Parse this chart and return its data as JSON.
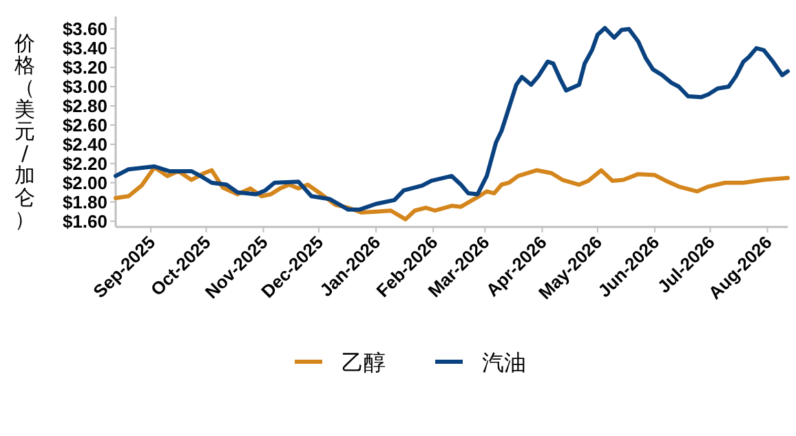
{
  "chart_data": {
    "type": "line",
    "ylabel": "价格（美元/加仑）",
    "legend": "bottom",
    "grid": false,
    "xlim": [
      "2025-08-13",
      "2026-08-12"
    ],
    "ylim": [
      1.54,
      3.73
    ],
    "xticks": [
      {
        "value": "2025-09-01",
        "label": "Sep-2025"
      },
      {
        "value": "2025-10-01",
        "label": "Oct-2025"
      },
      {
        "value": "2025-11-01",
        "label": "Nov-2025"
      },
      {
        "value": "2025-12-01",
        "label": "Dec-2025"
      },
      {
        "value": "2026-01-01",
        "label": "Jan-2026"
      },
      {
        "value": "2026-02-01",
        "label": "Feb-2026"
      },
      {
        "value": "2026-03-01",
        "label": "Mar-2026"
      },
      {
        "value": "2026-04-01",
        "label": "Apr-2026"
      },
      {
        "value": "2026-05-01",
        "label": "May-2026"
      },
      {
        "value": "2026-06-01",
        "label": "Jun-2026"
      },
      {
        "value": "2026-07-01",
        "label": "Jul-2026"
      },
      {
        "value": "2026-08-01",
        "label": "Aug-2026"
      }
    ],
    "yticks": [
      {
        "value": 1.6,
        "label": "$1.60"
      },
      {
        "value": 1.8,
        "label": "$1.80"
      },
      {
        "value": 2.0,
        "label": "$2.00"
      },
      {
        "value": 2.2,
        "label": "$2.20"
      },
      {
        "value": 2.4,
        "label": "$2.40"
      },
      {
        "value": 2.6,
        "label": "$2.60"
      },
      {
        "value": 2.8,
        "label": "$2.80"
      },
      {
        "value": 3.0,
        "label": "$3.00"
      },
      {
        "value": 3.2,
        "label": "$3.20"
      },
      {
        "value": 3.4,
        "label": "$3.40"
      },
      {
        "value": 3.6,
        "label": "$3.60"
      }
    ],
    "series": [
      {
        "name": "乙醇",
        "color": "#d4861c",
        "x": [
          "2025-08-13",
          "2025-08-20",
          "2025-08-27",
          "2025-09-03",
          "2025-09-10",
          "2025-09-16",
          "2025-09-23",
          "2025-09-30",
          "2025-10-04",
          "2025-10-10",
          "2025-10-18",
          "2025-10-25",
          "2025-10-31",
          "2025-11-05",
          "2025-11-10",
          "2025-11-15",
          "2025-11-20",
          "2025-11-25",
          "2025-12-01",
          "2025-12-10",
          "2025-12-17",
          "2025-12-24",
          "2026-01-01",
          "2026-01-09",
          "2026-01-17",
          "2026-01-22",
          "2026-01-28",
          "2026-02-02",
          "2026-02-11",
          "2026-02-16",
          "2026-02-25",
          "2026-03-02",
          "2026-03-06",
          "2026-03-10",
          "2026-03-14",
          "2026-03-19",
          "2026-03-29",
          "2026-04-06",
          "2026-04-12",
          "2026-04-21",
          "2026-04-26",
          "2026-05-03",
          "2026-05-09",
          "2026-05-15",
          "2026-05-23",
          "2026-06-01",
          "2026-06-07",
          "2026-06-14",
          "2026-06-24",
          "2026-06-30",
          "2026-07-09",
          "2026-07-19",
          "2026-07-30",
          "2026-08-12"
        ],
        "values": [
          1.84,
          1.86,
          1.97,
          2.16,
          2.07,
          2.12,
          2.03,
          2.1,
          2.13,
          1.95,
          1.88,
          1.94,
          1.86,
          1.88,
          1.94,
          1.98,
          1.94,
          1.98,
          1.9,
          1.77,
          1.74,
          1.69,
          1.7,
          1.71,
          1.62,
          1.71,
          1.74,
          1.71,
          1.76,
          1.75,
          1.85,
          1.91,
          1.89,
          1.98,
          2.0,
          2.07,
          2.13,
          2.1,
          2.03,
          1.98,
          2.02,
          2.13,
          2.02,
          2.03,
          2.09,
          2.08,
          2.02,
          1.96,
          1.91,
          1.96,
          2.0,
          2.0,
          2.03,
          2.05
        ]
      },
      {
        "name": "汽油",
        "color": "#0a4280",
        "x": [
          "2025-08-13",
          "2025-08-20",
          "2025-09-03",
          "2025-09-11",
          "2025-09-16",
          "2025-09-23",
          "2025-09-28",
          "2025-10-04",
          "2025-10-12",
          "2025-10-18",
          "2025-10-28",
          "2025-11-02",
          "2025-11-07",
          "2025-11-20",
          "2025-11-27",
          "2025-12-07",
          "2025-12-17",
          "2025-12-23",
          "2026-01-01",
          "2026-01-11",
          "2026-01-16",
          "2026-01-26",
          "2026-01-31",
          "2026-02-11",
          "2026-02-16",
          "2026-02-20",
          "2026-02-25",
          "2026-03-02",
          "2026-03-07",
          "2026-03-10",
          "2026-03-14",
          "2026-03-18",
          "2026-03-21",
          "2026-03-26",
          "2026-03-30",
          "2026-04-04",
          "2026-04-07",
          "2026-04-11",
          "2026-04-14",
          "2026-04-21",
          "2026-04-24",
          "2026-04-28",
          "2026-05-01",
          "2026-05-05",
          "2026-05-10",
          "2026-05-14",
          "2026-05-18",
          "2026-05-23",
          "2026-05-27",
          "2026-05-31",
          "2026-06-05",
          "2026-06-10",
          "2026-06-14",
          "2026-06-19",
          "2026-06-26",
          "2026-06-30",
          "2026-07-05",
          "2026-07-11",
          "2026-07-15",
          "2026-07-19",
          "2026-07-22",
          "2026-07-26",
          "2026-07-30",
          "2026-08-04",
          "2026-08-09",
          "2026-08-12"
        ],
        "values": [
          2.07,
          2.14,
          2.17,
          2.12,
          2.12,
          2.12,
          2.07,
          2.0,
          1.98,
          1.9,
          1.88,
          1.92,
          2.0,
          2.01,
          1.86,
          1.83,
          1.72,
          1.72,
          1.78,
          1.82,
          1.92,
          1.97,
          2.02,
          2.07,
          1.98,
          1.89,
          1.88,
          2.07,
          2.42,
          2.54,
          2.78,
          3.02,
          3.1,
          3.02,
          3.11,
          3.26,
          3.24,
          3.07,
          2.96,
          3.02,
          3.24,
          3.38,
          3.54,
          3.61,
          3.51,
          3.59,
          3.6,
          3.47,
          3.3,
          3.18,
          3.12,
          3.04,
          3.0,
          2.9,
          2.89,
          2.92,
          2.98,
          3.0,
          3.11,
          3.26,
          3.31,
          3.4,
          3.38,
          3.26,
          3.12,
          3.16
        ]
      }
    ]
  }
}
